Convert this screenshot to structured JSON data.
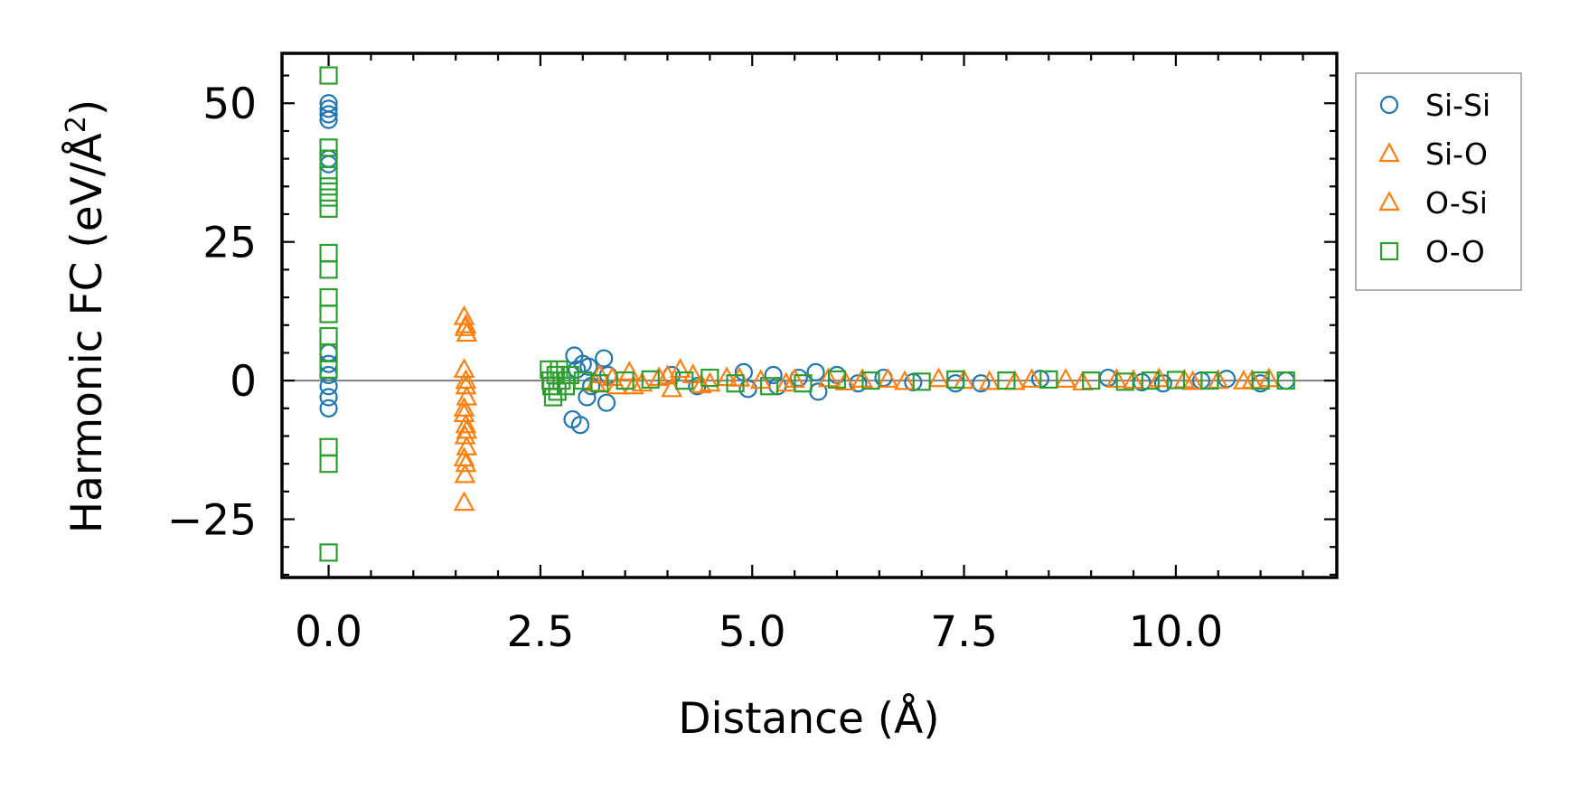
{
  "chart_data": {
    "type": "scatter",
    "title": "",
    "xlabel": "Distance (Å)",
    "ylabel_main": "Harmonic FC (eV/Å",
    "ylabel_sup": "2",
    "ylabel_end": ")",
    "xlim": [
      -0.55,
      11.9
    ],
    "ylim": [
      -35.5,
      59
    ],
    "xticks": [
      0.0,
      2.5,
      5.0,
      7.5,
      10.0
    ],
    "xtick_labels": [
      "0.0",
      "2.5",
      "5.0",
      "7.5",
      "10.0"
    ],
    "yticks": [
      -25,
      0,
      25,
      50
    ],
    "ytick_labels": [
      "−25",
      "0",
      "25",
      "50"
    ],
    "zero_line": 0,
    "legend_position": "outside-right-top",
    "series": [
      {
        "name": "Si-Si",
        "marker": "circle",
        "color": "#1f77b4",
        "points": [
          [
            0,
            50
          ],
          [
            0,
            49
          ],
          [
            0,
            48
          ],
          [
            0,
            47
          ],
          [
            0,
            40
          ],
          [
            0,
            39
          ],
          [
            0,
            5
          ],
          [
            0,
            3
          ],
          [
            0,
            1
          ],
          [
            0,
            -1
          ],
          [
            0,
            -3
          ],
          [
            0,
            -5
          ],
          [
            2.88,
            -7
          ],
          [
            2.9,
            4.5
          ],
          [
            2.93,
            2
          ],
          [
            2.97,
            -8
          ],
          [
            3.0,
            3
          ],
          [
            3.05,
            -3
          ],
          [
            3.07,
            2.5
          ],
          [
            3.1,
            -1
          ],
          [
            3.25,
            4
          ],
          [
            3.28,
            -4
          ],
          [
            3.3,
            1
          ],
          [
            4.05,
            1
          ],
          [
            4.35,
            -1
          ],
          [
            4.9,
            1.5
          ],
          [
            4.95,
            -1.5
          ],
          [
            5.25,
            1
          ],
          [
            5.3,
            -1
          ],
          [
            5.55,
            0.5
          ],
          [
            5.75,
            1.5
          ],
          [
            5.78,
            -2
          ],
          [
            6.0,
            1
          ],
          [
            6.25,
            -0.5
          ],
          [
            6.55,
            0.5
          ],
          [
            6.9,
            -0.3
          ],
          [
            7.4,
            -0.5
          ],
          [
            7.7,
            -0.5
          ],
          [
            8.4,
            0.3
          ],
          [
            9.2,
            0.5
          ],
          [
            9.6,
            -0.3
          ],
          [
            9.85,
            -0.5
          ],
          [
            10.3,
            0
          ],
          [
            10.6,
            0.3
          ],
          [
            11.0,
            -0.5
          ],
          [
            11.3,
            0
          ]
        ]
      },
      {
        "name": "Si-O",
        "marker": "triangle",
        "color": "#ff7f0e",
        "points": [
          [
            1.6,
            11.5
          ],
          [
            1.62,
            10
          ],
          [
            1.63,
            8.5
          ],
          [
            1.6,
            2
          ],
          [
            1.62,
            -1
          ],
          [
            1.63,
            -3
          ],
          [
            1.6,
            -5
          ],
          [
            1.62,
            -8
          ],
          [
            1.61,
            -10
          ],
          [
            1.63,
            -12
          ],
          [
            1.6,
            -14
          ],
          [
            1.62,
            -15
          ],
          [
            1.61,
            -17
          ],
          [
            1.6,
            -22
          ],
          [
            3.2,
            1
          ],
          [
            3.4,
            -1
          ],
          [
            3.55,
            1.5
          ],
          [
            3.7,
            -0.5
          ],
          [
            3.9,
            0.5
          ],
          [
            4.05,
            -1.5
          ],
          [
            4.15,
            2
          ],
          [
            4.3,
            1
          ],
          [
            4.5,
            -0.5
          ],
          [
            4.7,
            0.5
          ],
          [
            5.1,
            0
          ],
          [
            5.4,
            -0.5
          ],
          [
            5.9,
            0.3
          ],
          [
            6.3,
            0.2
          ],
          [
            6.8,
            -0.2
          ],
          [
            7.2,
            0.3
          ],
          [
            7.8,
            -0.2
          ],
          [
            8.3,
            0.2
          ],
          [
            8.9,
            -0.3
          ],
          [
            9.3,
            0.2
          ],
          [
            9.8,
            0.3
          ],
          [
            10.2,
            -0.2
          ],
          [
            10.9,
            0
          ],
          [
            11.1,
            0.3
          ]
        ]
      },
      {
        "name": "O-Si",
        "marker": "triangle",
        "color": "#ff7f0e",
        "points": [
          [
            1.61,
            9.5
          ],
          [
            1.62,
            0
          ],
          [
            1.6,
            -6
          ],
          [
            1.63,
            -9
          ],
          [
            3.15,
            -0.5
          ],
          [
            3.35,
            0.5
          ],
          [
            3.6,
            -1
          ],
          [
            4.0,
            0.8
          ],
          [
            4.4,
            -0.8
          ],
          [
            4.85,
            0.4
          ],
          [
            5.5,
            0.2
          ],
          [
            6.1,
            -0.3
          ],
          [
            6.6,
            0.2
          ],
          [
            7.5,
            0
          ],
          [
            8.1,
            -0.2
          ],
          [
            8.7,
            0.2
          ],
          [
            9.5,
            0
          ],
          [
            10.1,
            0.1
          ],
          [
            10.5,
            0
          ],
          [
            10.8,
            -0.1
          ]
        ]
      },
      {
        "name": "O-O",
        "marker": "square",
        "color": "#2ca02c",
        "points": [
          [
            0,
            55
          ],
          [
            0,
            42
          ],
          [
            0,
            40
          ],
          [
            0,
            37
          ],
          [
            0,
            35
          ],
          [
            0,
            33
          ],
          [
            0,
            31
          ],
          [
            0,
            23
          ],
          [
            0,
            20
          ],
          [
            0,
            15
          ],
          [
            0,
            12
          ],
          [
            0,
            8
          ],
          [
            0,
            5
          ],
          [
            0,
            2
          ],
          [
            0,
            -12
          ],
          [
            0,
            -15
          ],
          [
            0,
            -31
          ],
          [
            2.6,
            2
          ],
          [
            2.62,
            0
          ],
          [
            2.63,
            -1
          ],
          [
            2.65,
            -3
          ],
          [
            2.68,
            1
          ],
          [
            2.7,
            -2
          ],
          [
            2.72,
            2
          ],
          [
            2.75,
            0
          ],
          [
            2.8,
            -1
          ],
          [
            2.85,
            1
          ],
          [
            3.0,
            0
          ],
          [
            3.2,
            -0.5
          ],
          [
            3.5,
            0
          ],
          [
            3.8,
            0.2
          ],
          [
            4.2,
            0
          ],
          [
            4.5,
            0.5
          ],
          [
            4.8,
            -0.5
          ],
          [
            5.2,
            -1
          ],
          [
            5.6,
            -0.5
          ],
          [
            6.0,
            0.2
          ],
          [
            6.4,
            0
          ],
          [
            7.0,
            -0.2
          ],
          [
            7.4,
            0.2
          ],
          [
            8.0,
            0
          ],
          [
            8.5,
            0.2
          ],
          [
            9.0,
            0
          ],
          [
            9.4,
            -0.2
          ],
          [
            9.7,
            0
          ],
          [
            10.0,
            0.1
          ],
          [
            10.4,
            0
          ],
          [
            11.0,
            0
          ],
          [
            11.3,
            0
          ]
        ]
      }
    ]
  }
}
